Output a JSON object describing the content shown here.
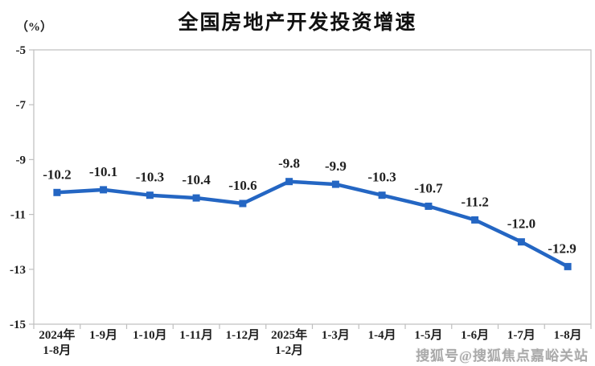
{
  "title": "全国房地产开发投资增速",
  "unit_label": "（%）",
  "watermark": "搜狐号@搜狐焦点嘉峪关站",
  "colors": {
    "line": "#2466C3",
    "axis": "#BFBFBF",
    "text": "#202020",
    "watermark": "#A9A9A9",
    "background": "#FFFFFF"
  },
  "chart_data": {
    "type": "line",
    "title": "全国房地产开发投资增速",
    "ylabel": "（%）",
    "categories": [
      "2024年\n1-8月",
      "1-9月",
      "1-10月",
      "1-11月",
      "1-12月",
      "2025年\n1-2月",
      "1-3月",
      "1-4月",
      "1-5月",
      "1-6月",
      "1-7月",
      "1-8月"
    ],
    "values": [
      -10.2,
      -10.1,
      -10.3,
      -10.4,
      -10.6,
      -9.8,
      -9.9,
      -10.3,
      -10.7,
      -11.2,
      -12.0,
      -12.9
    ],
    "data_labels": [
      "-10.2",
      "-10.1",
      "-10.3",
      "-10.4",
      "-10.6",
      "-9.8",
      "-9.9",
      "-10.3",
      "-10.7",
      "-11.2",
      "-12.0",
      "-12.9"
    ],
    "series_name": "全国房地产开发投资增速",
    "ylim": [
      -15,
      -5
    ],
    "yticks": [
      -5,
      -7,
      -9,
      -11,
      -13,
      -15
    ],
    "grid": false,
    "legend_position": "none",
    "marker": "square",
    "line_color": "#2466C3"
  }
}
